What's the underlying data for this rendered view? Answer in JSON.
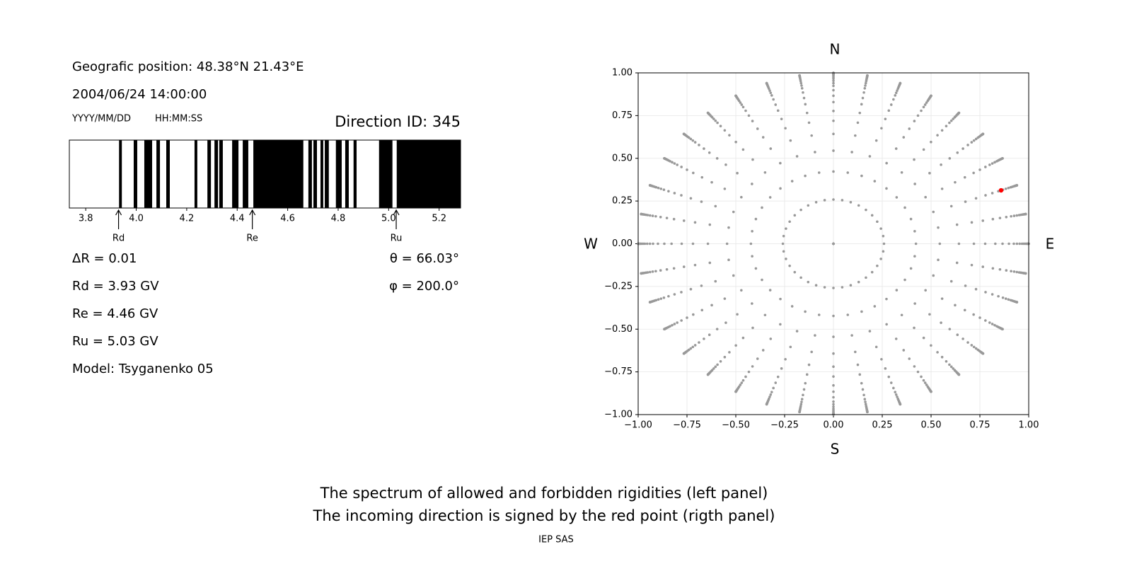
{
  "chart_data": [
    {
      "type": "spectrum",
      "texts": {
        "position": "Geografic position: 48.38°N 21.43°E",
        "datetime": "2004/06/24 14:00:00",
        "date_format": "YYYY/MM/DD",
        "time_format": "HH:MM:SS",
        "delta": "ΔR = 0.01",
        "model": "Model: Tsyganenko 05"
      },
      "title": "Direction ID: 345",
      "xlim": [
        3.735,
        5.285
      ],
      "xticks": [
        3.8,
        {
          "value": 4,
          "label": "4.0"
        },
        4.2,
        4.4,
        4.6,
        4.8,
        {
          "value": 5,
          "label": "5.0"
        },
        5.2
      ],
      "color": "#000000",
      "forbidden": [
        [
          3.932,
          3.943
        ],
        [
          3.99,
          4.004
        ],
        [
          4.032,
          4.063
        ],
        [
          4.08,
          4.094
        ],
        [
          4.119,
          4.133
        ],
        [
          4.231,
          4.242
        ],
        [
          4.282,
          4.296
        ],
        [
          4.31,
          4.324
        ],
        [
          4.329,
          4.343
        ],
        [
          4.38,
          4.405
        ],
        [
          4.422,
          4.444
        ],
        [
          4.464,
          4.662
        ],
        [
          4.682,
          4.696
        ],
        [
          4.702,
          4.716
        ],
        [
          4.73,
          4.741
        ],
        [
          4.747,
          4.763
        ],
        [
          4.791,
          4.814
        ],
        [
          4.828,
          4.842
        ],
        [
          4.861,
          4.873
        ],
        [
          4.962,
          5.015
        ],
        [
          5.032,
          5.285
        ]
      ],
      "markers": [
        {
          "name": "Rd",
          "value": 3.93,
          "label": "Rd = 3.93 GV"
        },
        {
          "name": "Re",
          "value": 4.46,
          "label": "Re = 4.46 GV"
        },
        {
          "name": "Ru",
          "value": 5.03,
          "label": "Ru = 5.03 GV"
        }
      ]
    },
    {
      "type": "scatter",
      "compass": {
        "north": "N",
        "south": "S",
        "west": "W",
        "east": "E"
      },
      "xlim": [
        -1,
        1
      ],
      "ylim": [
        -1,
        1
      ],
      "xticks": [
        {
          "value": -1,
          "label": "−1.00"
        },
        {
          "value": -0.75,
          "label": "−0.75"
        },
        {
          "value": -0.5,
          "label": "−0.50"
        },
        {
          "value": -0.25,
          "label": "−0.25"
        },
        {
          "value": 0,
          "label": "0.00"
        },
        {
          "value": 0.25,
          "label": "0.25"
        },
        {
          "value": 0.5,
          "label": "0.50"
        },
        {
          "value": 0.75,
          "label": "0.75"
        },
        {
          "value": 1,
          "label": "1.00"
        }
      ],
      "yticks": [
        {
          "value": -1,
          "label": "−1.00"
        },
        {
          "value": -0.75,
          "label": "−0.75"
        },
        {
          "value": -0.5,
          "label": "−0.50"
        },
        {
          "value": -0.25,
          "label": "−0.25"
        },
        {
          "value": 0,
          "label": "0.00"
        },
        {
          "value": 0.25,
          "label": "0.25"
        },
        {
          "value": 0.5,
          "label": "0.50"
        },
        {
          "value": 0.75,
          "label": "0.75"
        },
        {
          "value": 1,
          "label": "1.00"
        }
      ],
      "grid": true,
      "color": "#999999",
      "zenith_angles": [
        0,
        15,
        25,
        33,
        40,
        46,
        51,
        56,
        60,
        64,
        67.5,
        70,
        72.5,
        75,
        77,
        79,
        81,
        82.5,
        84,
        85.5,
        87,
        88,
        89,
        90
      ],
      "azimuths": [
        0,
        10,
        20,
        30,
        40,
        50,
        60,
        70,
        80,
        90,
        100,
        110,
        120,
        130,
        140,
        150,
        160,
        170,
        180,
        190,
        200,
        210,
        220,
        230,
        240,
        250,
        260,
        270,
        280,
        290,
        300,
        310,
        320,
        330,
        340,
        350
      ],
      "direction": {
        "theta": 66.03,
        "phi": 200.0,
        "theta_label": "θ = 66.03°",
        "phi_label": "φ = 200.0°",
        "color": "#ff0000"
      }
    }
  ],
  "footer": {
    "line1": "The spectrum of allowed and forbidden rigidities (left panel)",
    "line2": "The incoming direction is signed by the red point (rigth panel)",
    "credit": "IEP SAS"
  }
}
